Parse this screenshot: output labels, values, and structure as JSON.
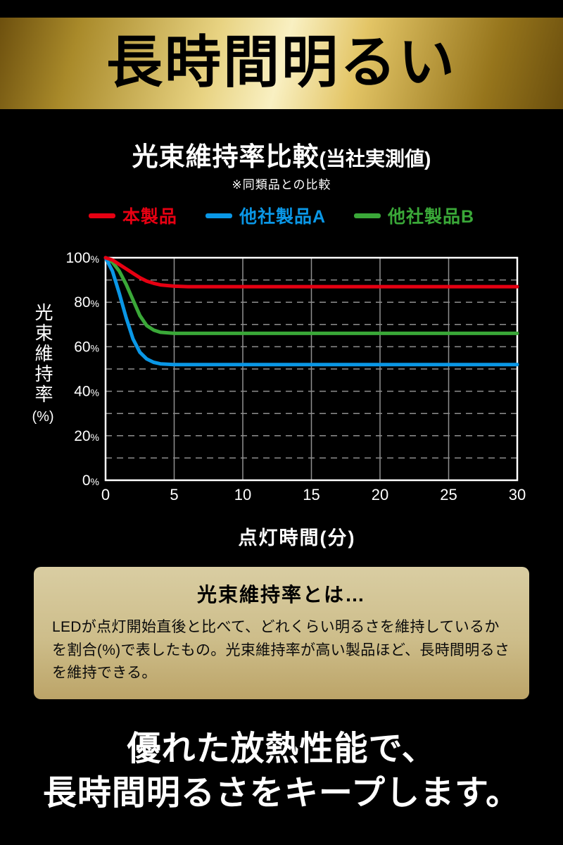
{
  "banner": {
    "title": "長時間明るい"
  },
  "chart_section": {
    "title_main": "光束維持率比較",
    "title_paren": "(当社実測値)",
    "subtitle": "※同類品との比較",
    "y_title_vertical": "光束維持率",
    "y_title_unit": "(%)",
    "x_title": "点灯時間(分)",
    "legend": [
      {
        "label": "本製品",
        "color": "#e60012"
      },
      {
        "label": "他社製品A",
        "color": "#0a97e6"
      },
      {
        "label": "他社製品B",
        "color": "#3aa838"
      }
    ]
  },
  "chart_data": {
    "type": "line",
    "title": "光束維持率比較(当社実測値)",
    "xlabel": "点灯時間(分)",
    "ylabel": "光束維持率(%)",
    "xlim": [
      0,
      30
    ],
    "ylim": [
      0,
      100
    ],
    "x_ticks": [
      0,
      5,
      10,
      15,
      20,
      25,
      30
    ],
    "y_ticks_labeled": [
      0,
      20,
      40,
      60,
      80,
      100
    ],
    "grid_y_interval": 10,
    "grid_color": "#8f8f8f",
    "legend_position": "top",
    "series": [
      {
        "name": "本製品",
        "color": "#e60012",
        "flat_value": 87,
        "points": [
          [
            0,
            100
          ],
          [
            0.5,
            99
          ],
          [
            1,
            97
          ],
          [
            1.5,
            95
          ],
          [
            2,
            93
          ],
          [
            2.5,
            91
          ],
          [
            3,
            89.5
          ],
          [
            3.5,
            88.5
          ],
          [
            4,
            87.8
          ],
          [
            5,
            87.2
          ],
          [
            6,
            87
          ],
          [
            30,
            87
          ]
        ]
      },
      {
        "name": "他社製品A",
        "color": "#0a97e6",
        "flat_value": 52,
        "points": [
          [
            0,
            100
          ],
          [
            0.5,
            94
          ],
          [
            1,
            84
          ],
          [
            1.5,
            73
          ],
          [
            2,
            63.5
          ],
          [
            2.5,
            57.5
          ],
          [
            3,
            54.5
          ],
          [
            3.5,
            53
          ],
          [
            4,
            52.3
          ],
          [
            5,
            52
          ],
          [
            30,
            52
          ]
        ]
      },
      {
        "name": "他社製品B",
        "color": "#3aa838",
        "flat_value": 66,
        "points": [
          [
            0,
            100
          ],
          [
            0.5,
            98
          ],
          [
            1,
            94
          ],
          [
            1.5,
            88
          ],
          [
            2,
            81
          ],
          [
            2.5,
            74
          ],
          [
            3,
            69.5
          ],
          [
            3.5,
            67.5
          ],
          [
            4,
            66.5
          ],
          [
            5,
            66
          ],
          [
            30,
            66
          ]
        ]
      }
    ]
  },
  "info_box": {
    "title": "光束維持率とは…",
    "body": "LEDが点灯開始直後と比べて、どれくらい明るさを維持しているかを割合(%)で表したもの。光束維持率が高い製品ほど、長時間明るさを維持できる。"
  },
  "footer": {
    "line1": "優れた放熱性能で、",
    "line2": "長時間明るさをキープします。"
  }
}
